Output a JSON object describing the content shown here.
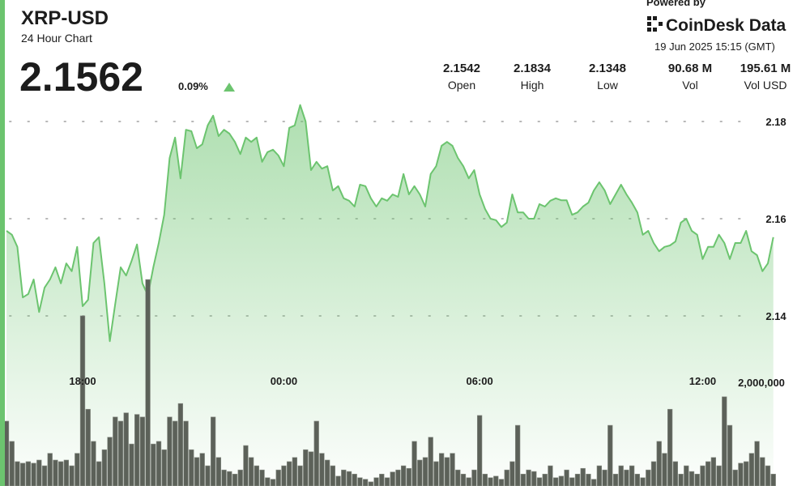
{
  "chart_data": {
    "type": "line",
    "title": "XRP-USD",
    "subtitle": "24 Hour Chart",
    "last_price": "2.1562",
    "change": "0.09%",
    "stats": [
      {
        "value": "2.1542",
        "label": "Open"
      },
      {
        "value": "2.1834",
        "label": "High"
      },
      {
        "value": "2.1348",
        "label": "Low"
      },
      {
        "value": "90.68 M",
        "label": "Vol"
      },
      {
        "value": "195.61 M",
        "label": "Vol USD"
      }
    ],
    "powered_by": "Powered by",
    "brand": "CoinDesk Data",
    "timestamp": "19 Jun 2025 15:15 (GMT)",
    "categories": [
      null,
      null,
      null,
      null,
      null,
      null,
      null,
      null,
      null,
      null,
      null,
      null,
      null,
      null,
      "18:00",
      null,
      null,
      null,
      null,
      null,
      null,
      null,
      null,
      null,
      null,
      null,
      null,
      null,
      null,
      null,
      null,
      null,
      null,
      null,
      null,
      null,
      null,
      null,
      null,
      null,
      null,
      null,
      null,
      null,
      null,
      null,
      null,
      null,
      null,
      null,
      null,
      "00:00",
      null,
      null,
      null,
      null,
      null,
      null,
      null,
      null,
      null,
      null,
      null,
      null,
      null,
      null,
      null,
      null,
      null,
      null,
      null,
      null,
      null,
      null,
      null,
      null,
      null,
      null,
      null,
      null,
      null,
      null,
      null,
      null,
      null,
      null,
      null,
      "06:00",
      null,
      null,
      null,
      null,
      null,
      null,
      null,
      null,
      null,
      null,
      null,
      null,
      null,
      null,
      null,
      null,
      null,
      null,
      null,
      null,
      null,
      null,
      null,
      null,
      null,
      null,
      null,
      null,
      null,
      null,
      null,
      null,
      null,
      null,
      null,
      null,
      null,
      null,
      null,
      null,
      "12:00",
      null,
      null,
      null,
      null,
      null,
      null,
      null,
      null,
      null,
      null,
      null,
      null,
      null,
      null,
      null,
      null,
      null,
      null,
      null
    ],
    "price": {
      "color": "#6cc46f",
      "values": [
        2.1575,
        2.1567,
        2.1542,
        2.1438,
        2.1445,
        2.1475,
        2.1408,
        2.1458,
        2.1475,
        2.15,
        2.1467,
        2.1508,
        2.1492,
        2.1542,
        2.142,
        2.1433,
        2.155,
        2.1562,
        2.1467,
        2.1348,
        2.1425,
        2.15,
        2.1483,
        2.1513,
        2.1547,
        2.1467,
        2.1442,
        2.15,
        2.155,
        2.1608,
        2.1725,
        2.1767,
        2.1683,
        2.1783,
        2.178,
        2.1745,
        2.1753,
        2.1792,
        2.1812,
        2.177,
        2.1783,
        2.1775,
        2.1758,
        2.1733,
        2.1767,
        2.1758,
        2.1767,
        2.1717,
        2.1737,
        2.1742,
        2.173,
        2.1708,
        2.1787,
        2.1792,
        2.1834,
        2.18,
        2.17,
        2.1717,
        2.1703,
        2.1708,
        2.1658,
        2.1667,
        2.1642,
        2.1637,
        2.1625,
        2.167,
        2.1667,
        2.1642,
        2.1625,
        2.1642,
        2.1637,
        2.165,
        2.1645,
        2.1692,
        2.165,
        2.1667,
        2.165,
        2.1625,
        2.1692,
        2.1708,
        2.175,
        2.1758,
        2.175,
        2.1725,
        2.1708,
        2.1683,
        2.17,
        2.165,
        2.162,
        2.16,
        2.1597,
        2.1583,
        2.1592,
        2.165,
        2.1613,
        2.1613,
        2.16,
        2.16,
        2.163,
        2.1625,
        2.1637,
        2.1642,
        2.1638,
        2.1638,
        2.1608,
        2.1613,
        2.1625,
        2.1633,
        2.1658,
        2.1675,
        2.1658,
        2.163,
        2.165,
        2.167,
        2.165,
        2.1633,
        2.1613,
        2.1567,
        2.1575,
        2.155,
        2.1533,
        2.1542,
        2.1545,
        2.1553,
        2.1592,
        2.16,
        2.1575,
        2.1567,
        2.1517,
        2.1542,
        2.1542,
        2.1567,
        2.155,
        2.1517,
        2.155,
        2.155,
        2.1575,
        2.1533,
        2.1525,
        2.1492,
        2.1508,
        2.1562
      ]
    },
    "volume": {
      "color": "#5c6159",
      "axis": "y2",
      "values": [
        1250000,
        860000,
        470000,
        440000,
        470000,
        440000,
        500000,
        390000,
        630000,
        500000,
        470000,
        500000,
        390000,
        630000,
        3280000,
        1480000,
        860000,
        470000,
        700000,
        940000,
        1330000,
        1250000,
        1410000,
        810000,
        1380000,
        1330000,
        3980000,
        810000,
        860000,
        700000,
        1330000,
        1250000,
        1590000,
        1250000,
        700000,
        550000,
        630000,
        390000,
        1330000,
        550000,
        310000,
        280000,
        230000,
        310000,
        780000,
        550000,
        390000,
        310000,
        160000,
        130000,
        310000,
        390000,
        470000,
        550000,
        390000,
        700000,
        660000,
        1250000,
        630000,
        500000,
        390000,
        190000,
        310000,
        280000,
        230000,
        160000,
        130000,
        80000,
        160000,
        230000,
        160000,
        270000,
        310000,
        390000,
        340000,
        860000,
        500000,
        550000,
        940000,
        470000,
        630000,
        550000,
        630000,
        310000,
        230000,
        160000,
        310000,
        1360000,
        230000,
        160000,
        190000,
        130000,
        310000,
        470000,
        1170000,
        230000,
        310000,
        280000,
        160000,
        230000,
        390000,
        160000,
        190000,
        310000,
        160000,
        230000,
        340000,
        230000,
        130000,
        390000,
        310000,
        1170000,
        230000,
        390000,
        310000,
        390000,
        230000,
        160000,
        310000,
        470000,
        860000,
        630000,
        1480000,
        470000,
        230000,
        390000,
        280000,
        230000,
        390000,
        470000,
        550000,
        390000,
        1720000,
        1170000,
        310000,
        440000,
        470000,
        630000,
        860000,
        550000,
        390000,
        230000
      ]
    },
    "ylim": [
      2.105,
      2.205
    ],
    "yticks": [
      2.14,
      2.16,
      2.18
    ],
    "y2lim": [
      0,
      4700000
    ],
    "y2ticks": [
      {
        "value": 2000000,
        "label": "2,000,000"
      }
    ],
    "grid": true
  }
}
